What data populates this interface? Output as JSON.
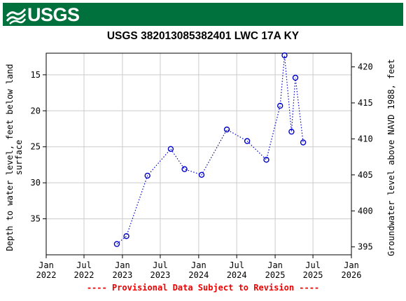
{
  "header": {
    "logo_text": "USGS",
    "logo_icon": "usgs-wave-icon",
    "banner_color": "#00713d"
  },
  "footer": {
    "note": "---- Provisional Data Subject to Revision ----",
    "note_color": "#ee0000"
  },
  "chart_data": {
    "type": "line",
    "title": "USGS 382013085382401 LWC 17A KY",
    "ylabel_left": "Depth to water level, feet below land surface",
    "ylabel_left_lines": [
      "Depth to water level, feet below land",
      "surface"
    ],
    "ylabel_right": "Groundwater level above NAVD 1988, feet",
    "y_left_inverted": true,
    "ylim_left": [
      12,
      40
    ],
    "left_ticks": [
      15,
      20,
      25,
      30,
      35
    ],
    "ylim_right": [
      393.9,
      421.9
    ],
    "right_ticks": [
      395,
      400,
      405,
      410,
      415,
      420
    ],
    "xlim": [
      "2022-01-01",
      "2026-01-01"
    ],
    "x_ticks": [
      {
        "date": "2022-01-01",
        "line1": "Jan",
        "line2": "2022"
      },
      {
        "date": "2022-07-01",
        "line1": "Jul",
        "line2": "2022"
      },
      {
        "date": "2023-01-01",
        "line1": "Jan",
        "line2": "2023"
      },
      {
        "date": "2023-07-01",
        "line1": "Jul",
        "line2": "2023"
      },
      {
        "date": "2024-01-01",
        "line1": "Jan",
        "line2": "2024"
      },
      {
        "date": "2024-07-01",
        "line1": "Jul",
        "line2": "2024"
      },
      {
        "date": "2025-01-01",
        "line1": "Jan",
        "line2": "2025"
      },
      {
        "date": "2025-07-01",
        "line1": "Jul",
        "line2": "2025"
      },
      {
        "date": "2026-01-01",
        "line1": "Jan",
        "line2": "2026"
      }
    ],
    "grid": true,
    "series": [
      {
        "color": "#0000cc",
        "line_style": "dotted",
        "marker": "open-circle",
        "x": [
          "2022-12-05",
          "2023-01-20",
          "2023-05-01",
          "2023-08-20",
          "2023-10-25",
          "2024-01-15",
          "2024-05-15",
          "2024-08-20",
          "2024-11-20",
          "2025-01-25",
          "2025-02-15",
          "2025-03-20",
          "2025-04-08",
          "2025-05-15"
        ],
        "y": [
          38.5,
          37.4,
          29.0,
          25.3,
          28.1,
          28.9,
          22.6,
          24.2,
          26.8,
          19.3,
          12.3,
          22.9,
          15.4,
          24.4
        ]
      }
    ]
  }
}
